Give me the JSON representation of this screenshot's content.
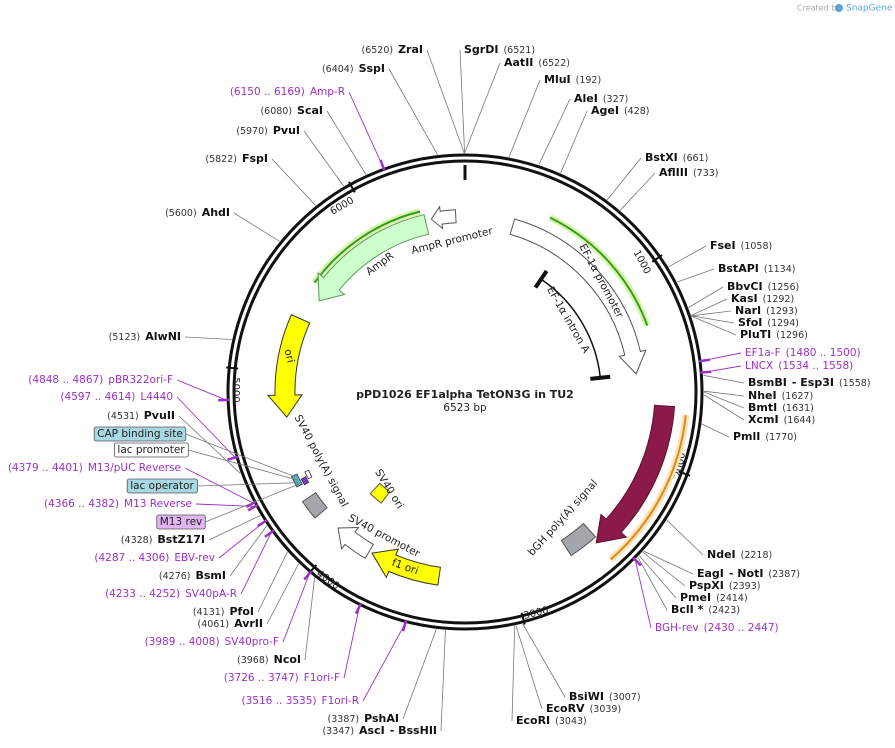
{
  "watermark": {
    "prefix": "Created by",
    "brand": "SnapGene"
  },
  "map": {
    "title": "pPD1026 EF1alpha TetON3G in TU2",
    "length": "6523 bp",
    "ticks": [
      "1000",
      "2000",
      "3000",
      "4000",
      "5000",
      "6000"
    ],
    "features": [
      {
        "label": "AmpR promoter"
      },
      {
        "label": "AmpR"
      },
      {
        "label": "ori"
      },
      {
        "label": "EF-1α promoter"
      },
      {
        "label": "EF-1α intron A"
      },
      {
        "label": "Tet-On® 3G"
      },
      {
        "label": "bGH poly(A) signal"
      },
      {
        "label": "SV40 poly(A) signal"
      },
      {
        "label": "SV40 ori"
      },
      {
        "label": "SV40 promoter"
      },
      {
        "label": "f1 ori"
      }
    ],
    "boxed_features": [
      {
        "label": "CAP binding site"
      },
      {
        "label": "lac promoter"
      },
      {
        "label": "lac operator"
      },
      {
        "label": "M13 rev"
      }
    ],
    "sites": [
      {
        "name": "ZraI",
        "pos": "(6520)"
      },
      {
        "name": "SgrDI",
        "pos": "(6521)"
      },
      {
        "name": "AatII",
        "pos": "(6522)"
      },
      {
        "name": "SspI",
        "pos": "(6404)"
      },
      {
        "name": "MluI",
        "pos": "(192)"
      },
      {
        "name": "AleI",
        "pos": "(327)"
      },
      {
        "name": "ScaI",
        "pos": "(6080)"
      },
      {
        "name": "AgeI",
        "pos": "(428)"
      },
      {
        "name": "PvuI",
        "pos": "(5970)"
      },
      {
        "name": "BstXI",
        "pos": "(661)"
      },
      {
        "name": "FspI",
        "pos": "(5822)"
      },
      {
        "name": "AflIII",
        "pos": "(733)"
      },
      {
        "name": "AhdI",
        "pos": "(5600)"
      },
      {
        "name": "FseI",
        "pos": "(1058)"
      },
      {
        "name": "BstAPI",
        "pos": "(1134)"
      },
      {
        "name": "BbvCI",
        "pos": "(1256)"
      },
      {
        "name": "KasI",
        "pos": "(1292)"
      },
      {
        "name": "NarI",
        "pos": "(1293)"
      },
      {
        "name": "SfoI",
        "pos": "(1294)"
      },
      {
        "name": "PluTI",
        "pos": "(1296)"
      },
      {
        "name": "AlwNI",
        "pos": "(5123)"
      },
      {
        "name": "BsmBI",
        "alias": "- Esp3I",
        "pos": "(1558)"
      },
      {
        "name": "NheI",
        "pos": "(1627)"
      },
      {
        "name": "BmtI",
        "pos": "(1631)"
      },
      {
        "name": "PvuII",
        "pos": "(4531)"
      },
      {
        "name": "XcmI",
        "pos": "(1644)"
      },
      {
        "name": "PmlI",
        "pos": "(1770)"
      },
      {
        "name": "BstZ17I",
        "pos": "(4328)"
      },
      {
        "name": "BsmI",
        "pos": "(4276)"
      },
      {
        "name": "NdeI",
        "pos": "(2218)"
      },
      {
        "name": "EagI",
        "alias": "- NotI",
        "pos": "(2387)"
      },
      {
        "name": "PspXI",
        "pos": "(2393)"
      },
      {
        "name": "PmeI",
        "pos": "(2414)"
      },
      {
        "name": "BclI *",
        "pos": "(2423)"
      },
      {
        "name": "PfoI",
        "pos": "(4131)"
      },
      {
        "name": "AvrII",
        "pos": "(4061)"
      },
      {
        "name": "NcoI",
        "pos": "(3968)"
      },
      {
        "name": "BsiWI",
        "pos": "(3007)"
      },
      {
        "name": "EcoRV",
        "pos": "(3039)"
      },
      {
        "name": "EcoRI",
        "pos": "(3043)"
      },
      {
        "name": "PshAI",
        "pos": "(3387)"
      },
      {
        "name": "AscI",
        "alias": "- BssHII",
        "pos": "(3347)"
      }
    ],
    "primers": [
      {
        "name": "Amp-R",
        "pos": "(6150 .. 6169)"
      },
      {
        "name": "EF1a-F",
        "pos": "(1480 .. 1500)"
      },
      {
        "name": "LNCX",
        "pos": "(1534 .. 1558)"
      },
      {
        "name": "pBR322ori-F",
        "pos": "(4848 .. 4867)"
      },
      {
        "name": "L4440",
        "pos": "(4597 .. 4614)"
      },
      {
        "name": "M13/pUC Reverse",
        "pos": "(4379 .. 4401)"
      },
      {
        "name": "M13 Reverse",
        "pos": "(4366 .. 4382)"
      },
      {
        "name": "EBV-rev",
        "pos": "(4287 .. 4306)"
      },
      {
        "name": "SV40pA-R",
        "pos": "(4233 .. 4252)"
      },
      {
        "name": "BGH-rev",
        "pos": "(2430 .. 2447)"
      },
      {
        "name": "SV40pro-F",
        "pos": "(3989 .. 4008)"
      },
      {
        "name": "F1ori-F",
        "pos": "(3726 .. 3747)"
      },
      {
        "name": "F1ori-R",
        "pos": "(3516 .. 3535)"
      }
    ]
  }
}
